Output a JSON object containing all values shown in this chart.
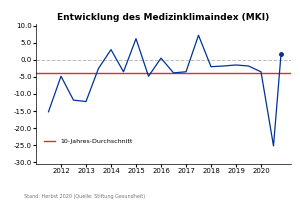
{
  "title": "Entwicklung des Medizinklimaindex (MKI)",
  "x_values": [
    2011.5,
    2012.0,
    2012.5,
    2013.0,
    2013.5,
    2014.0,
    2014.5,
    2015.0,
    2015.5,
    2016.0,
    2016.5,
    2017.0,
    2017.5,
    2018.0,
    2018.5,
    2019.0,
    2019.5,
    2020.0,
    2020.5,
    2020.8
  ],
  "y_values": [
    -15.2,
    -4.8,
    -11.8,
    -12.2,
    -2.5,
    3.0,
    -3.5,
    6.2,
    -4.8,
    0.5,
    -3.8,
    -3.5,
    7.2,
    -2.0,
    -1.8,
    -1.5,
    -1.8,
    -3.5,
    -25.2,
    1.6
  ],
  "line_color": "#003399",
  "avg_line_value": -3.8,
  "avg_line_color": "#cc3333",
  "avg_label": "10-Jahres-Durchschnitt",
  "zero_line_color": "#bbbbbb",
  "ylim": [
    -30.5,
    10.5
  ],
  "yticks": [
    -30.0,
    -25.0,
    -20.0,
    -15.0,
    -10.0,
    -5.0,
    0.0,
    5.0,
    10.0
  ],
  "xticks": [
    2012,
    2013,
    2014,
    2015,
    2016,
    2017,
    2018,
    2019,
    2020
  ],
  "xlim": [
    2011.0,
    2021.2
  ],
  "footer": "Stand: Herbst 2020 (Quelle: Stiftung Gesundheit)",
  "background_color": "#ffffff",
  "title_fontsize": 6.5,
  "tick_fontsize": 5.0,
  "footer_fontsize": 3.5,
  "legend_fontsize": 4.5
}
